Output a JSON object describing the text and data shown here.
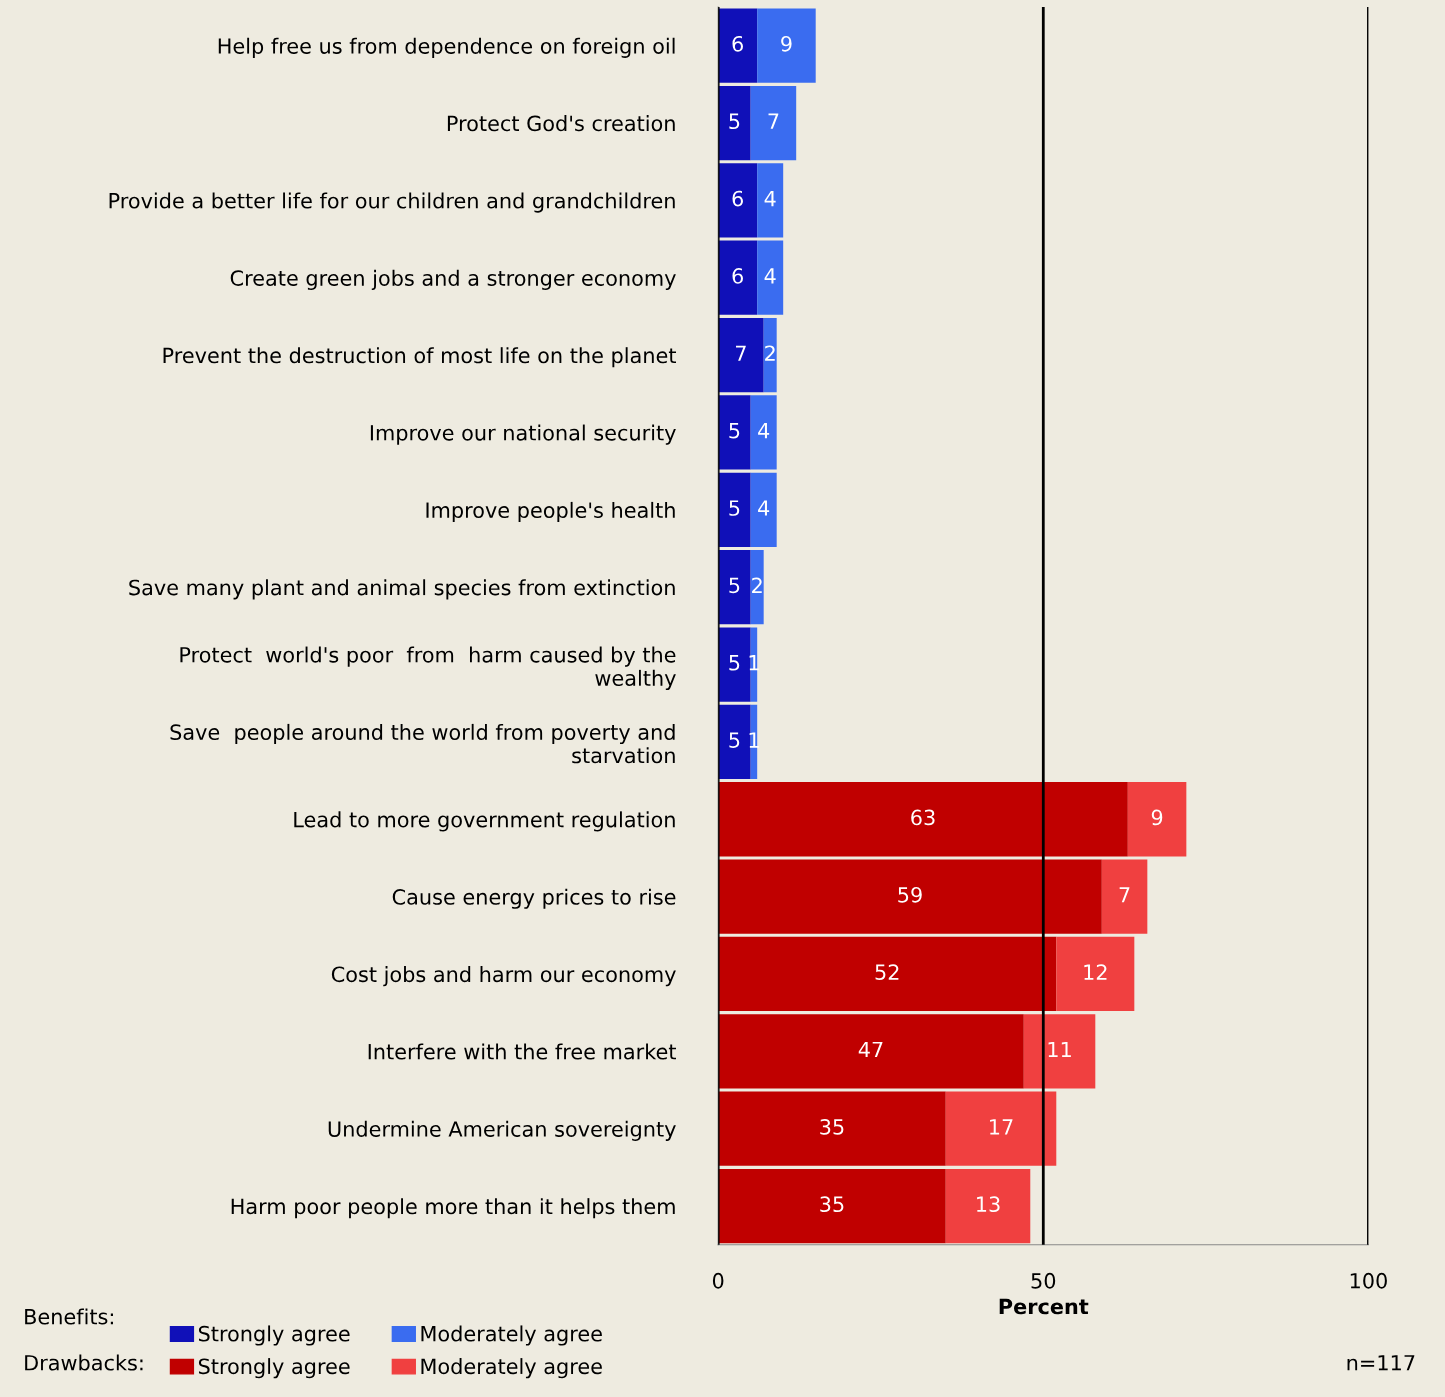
{
  "chart_data": {
    "type": "bar",
    "orientation": "horizontal",
    "stacked": true,
    "data_labels": true,
    "grid": "x",
    "legend": "bottom left",
    "xlabel": "Percent",
    "xlim": [
      0,
      100
    ],
    "xticks": [
      0,
      50,
      100
    ],
    "categories": [
      "Help free us from dependence on foreign oil",
      "Protect God's creation",
      "Provide a better life for our children and grandchildren",
      "Create green jobs and a stronger economy",
      "Prevent the destruction of most life on the planet",
      "Improve our national security",
      "Improve people's health",
      "Save many plant and animal species from extinction",
      "Protect  world's poor  from  harm caused by the\nwealthy",
      "Save  people around the world from poverty and\nstarvation",
      "Lead to more government regulation",
      "Cause energy prices to rise",
      "Cost jobs and harm our economy",
      "Interfere with the free market",
      "Undermine American sovereignty",
      "Harm poor people more than it helps them"
    ],
    "series": [
      {
        "name": "Strongly agree",
        "color": "#1010b8",
        "values": [
          6,
          5,
          6,
          6,
          7,
          5,
          5,
          5,
          5,
          5,
          null,
          null,
          null,
          null,
          null,
          null
        ]
      },
      {
        "name": "Moderately agree",
        "color": "#3a6cf0",
        "values": [
          9,
          7,
          4,
          4,
          2,
          4,
          4,
          2,
          1,
          1,
          null,
          null,
          null,
          null,
          null,
          null
        ]
      },
      {
        "name": "Strongly agree",
        "color": "#c00000",
        "values": [
          null,
          null,
          null,
          null,
          null,
          null,
          null,
          null,
          null,
          null,
          63,
          59,
          52,
          47,
          35,
          35
        ]
      },
      {
        "name": "Moderately agree",
        "color": "#f04040",
        "values": [
          null,
          null,
          null,
          null,
          null,
          null,
          null,
          null,
          null,
          null,
          9,
          7,
          12,
          11,
          17,
          13
        ]
      }
    ],
    "annotations": [
      "Benefits:",
      "Drawbacks:",
      "n=117"
    ]
  }
}
